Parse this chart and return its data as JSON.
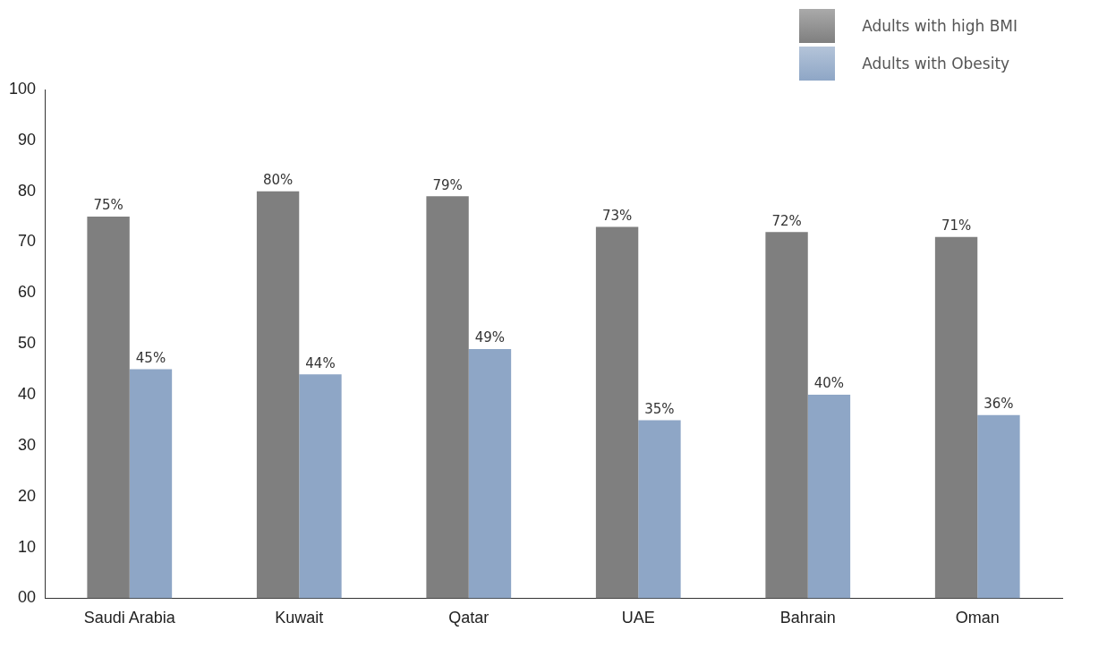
{
  "chart_data": {
    "type": "bar",
    "categories": [
      "Saudi Arabia",
      "Kuwait",
      "Qatar",
      "UAE",
      "Bahrain",
      "Oman"
    ],
    "series": [
      {
        "name": "Adults with high BMI",
        "color": "#7f7f7f",
        "values": [
          75,
          80,
          79,
          73,
          72,
          71
        ],
        "value_labels": [
          "75%",
          "80%",
          "79%",
          "73%",
          "72%",
          "71%"
        ]
      },
      {
        "name": "Adults with Obesity",
        "color": "#8ea6c6",
        "values": [
          45,
          44,
          49,
          35,
          40,
          36
        ],
        "value_labels": [
          "45%",
          "44%",
          "49%",
          "35%",
          "40%",
          "36%"
        ]
      }
    ],
    "ylim": [
      0,
      100
    ],
    "yticks": [
      {
        "value": 0,
        "label": "00"
      },
      10,
      20,
      30,
      40,
      50,
      60,
      70,
      80,
      90,
      100
    ],
    "grid": false,
    "legend": "top right"
  }
}
